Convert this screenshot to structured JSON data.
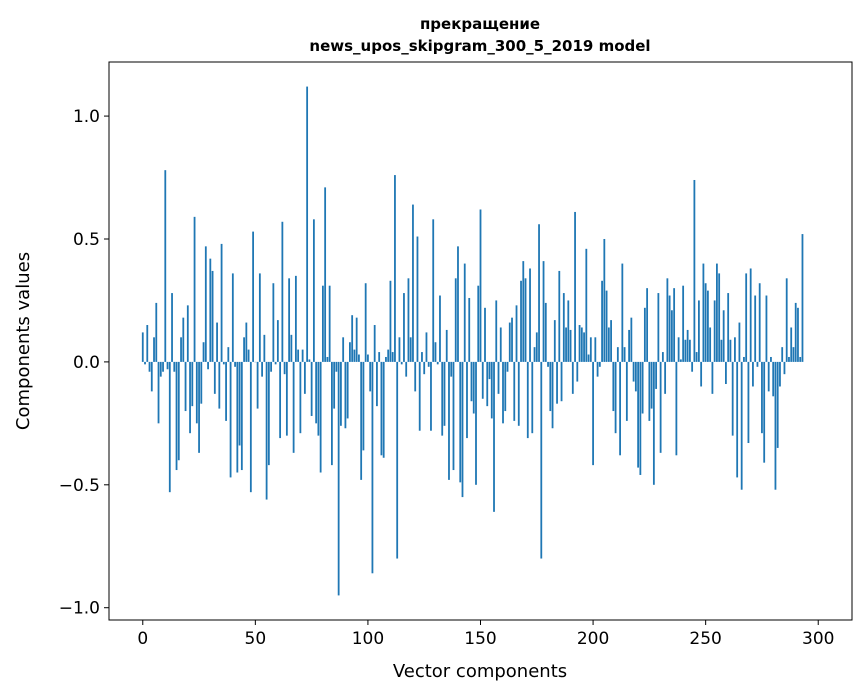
{
  "chart_data": {
    "type": "bar",
    "title_line1": "прекращение",
    "title_line2": "news_upos_skipgram_300_5_2019 model",
    "xlabel": "Vector components",
    "ylabel": "Components values",
    "xlim": [
      -15,
      315
    ],
    "ylim": [
      -1.05,
      1.22
    ],
    "xticks": [
      0,
      50,
      100,
      150,
      200,
      250,
      300
    ],
    "yticks": [
      -1.0,
      -0.5,
      0.0,
      0.5,
      1.0
    ],
    "ytick_labels": [
      "−1.0",
      "−0.5",
      "0.0",
      "0.5",
      "1.0"
    ],
    "bar_color": "#1f77b4",
    "values": [
      0.12,
      -0.01,
      0.15,
      -0.04,
      -0.12,
      0.1,
      0.24,
      -0.25,
      -0.06,
      -0.04,
      0.78,
      -0.03,
      -0.53,
      0.28,
      -0.04,
      -0.44,
      -0.4,
      0.1,
      0.18,
      -0.2,
      0.23,
      -0.29,
      -0.18,
      0.59,
      -0.25,
      -0.37,
      -0.17,
      0.08,
      0.47,
      -0.03,
      0.42,
      0.37,
      -0.13,
      0.16,
      -0.19,
      0.48,
      -0.01,
      -0.24,
      0.06,
      -0.47,
      0.36,
      -0.02,
      -0.45,
      -0.34,
      -0.44,
      0.1,
      0.16,
      0.05,
      -0.53,
      0.53,
      0.0,
      -0.19,
      0.36,
      -0.06,
      0.11,
      -0.56,
      -0.42,
      -0.04,
      0.32,
      -0.01,
      0.17,
      -0.31,
      0.57,
      -0.05,
      -0.3,
      0.34,
      0.11,
      -0.37,
      0.35,
      0.05,
      -0.29,
      0.05,
      -0.13,
      1.12,
      0.01,
      -0.22,
      0.58,
      -0.25,
      -0.3,
      -0.45,
      0.31,
      0.71,
      0.02,
      0.31,
      -0.42,
      -0.19,
      -0.04,
      -0.95,
      -0.26,
      0.1,
      -0.27,
      -0.23,
      0.08,
      0.19,
      0.05,
      0.18,
      0.03,
      -0.48,
      -0.36,
      0.32,
      0.03,
      -0.12,
      -0.86,
      0.15,
      -0.18,
      0.04,
      -0.38,
      -0.39,
      0.02,
      0.05,
      0.33,
      0.04,
      0.76,
      -0.8,
      0.1,
      -0.01,
      0.28,
      -0.06,
      0.34,
      0.1,
      0.64,
      -0.12,
      0.51,
      -0.28,
      0.04,
      -0.05,
      0.12,
      -0.02,
      -0.28,
      0.58,
      0.08,
      -0.01,
      0.27,
      -0.3,
      -0.26,
      0.13,
      -0.48,
      -0.06,
      -0.44,
      0.34,
      0.47,
      -0.49,
      -0.55,
      0.4,
      -0.31,
      0.26,
      -0.16,
      -0.21,
      -0.5,
      0.31,
      0.62,
      -0.15,
      0.22,
      -0.18,
      -0.07,
      -0.23,
      -0.61,
      0.25,
      -0.13,
      0.14,
      -0.25,
      -0.2,
      -0.04,
      0.16,
      0.18,
      -0.24,
      0.23,
      -0.26,
      0.33,
      0.41,
      0.34,
      -0.31,
      0.38,
      -0.29,
      0.06,
      0.12,
      0.56,
      -0.8,
      0.41,
      0.24,
      -0.02,
      -0.2,
      -0.27,
      0.17,
      -0.17,
      0.37,
      -0.16,
      0.28,
      0.14,
      0.25,
      0.13,
      -0.13,
      0.61,
      -0.08,
      0.15,
      0.14,
      0.12,
      0.46,
      0.03,
      0.1,
      -0.42,
      0.1,
      -0.06,
      -0.02,
      0.33,
      0.5,
      0.29,
      0.14,
      0.17,
      -0.2,
      -0.29,
      0.06,
      -0.38,
      0.4,
      0.06,
      -0.24,
      0.13,
      0.18,
      -0.08,
      -0.12,
      -0.43,
      -0.46,
      -0.21,
      0.22,
      0.3,
      -0.24,
      -0.19,
      -0.5,
      -0.11,
      0.28,
      -0.37,
      0.04,
      -0.13,
      0.34,
      0.27,
      0.21,
      0.3,
      -0.38,
      0.1,
      0.01,
      0.31,
      0.09,
      0.13,
      0.09,
      -0.04,
      0.74,
      0.04,
      0.25,
      -0.1,
      0.4,
      0.32,
      0.29,
      0.14,
      -0.13,
      0.25,
      0.4,
      0.36,
      0.09,
      0.21,
      -0.09,
      0.28,
      0.09,
      -0.3,
      0.1,
      -0.47,
      0.16,
      -0.52,
      0.02,
      0.36,
      -0.33,
      0.38,
      -0.1,
      0.27,
      -0.02,
      0.32,
      -0.29,
      -0.41,
      0.27,
      -0.12,
      0.02,
      -0.14,
      -0.52,
      -0.35,
      -0.1,
      0.06,
      -0.05,
      0.34,
      0.02,
      0.14,
      0.06,
      0.24,
      0.22,
      0.02,
      0.52
    ]
  }
}
